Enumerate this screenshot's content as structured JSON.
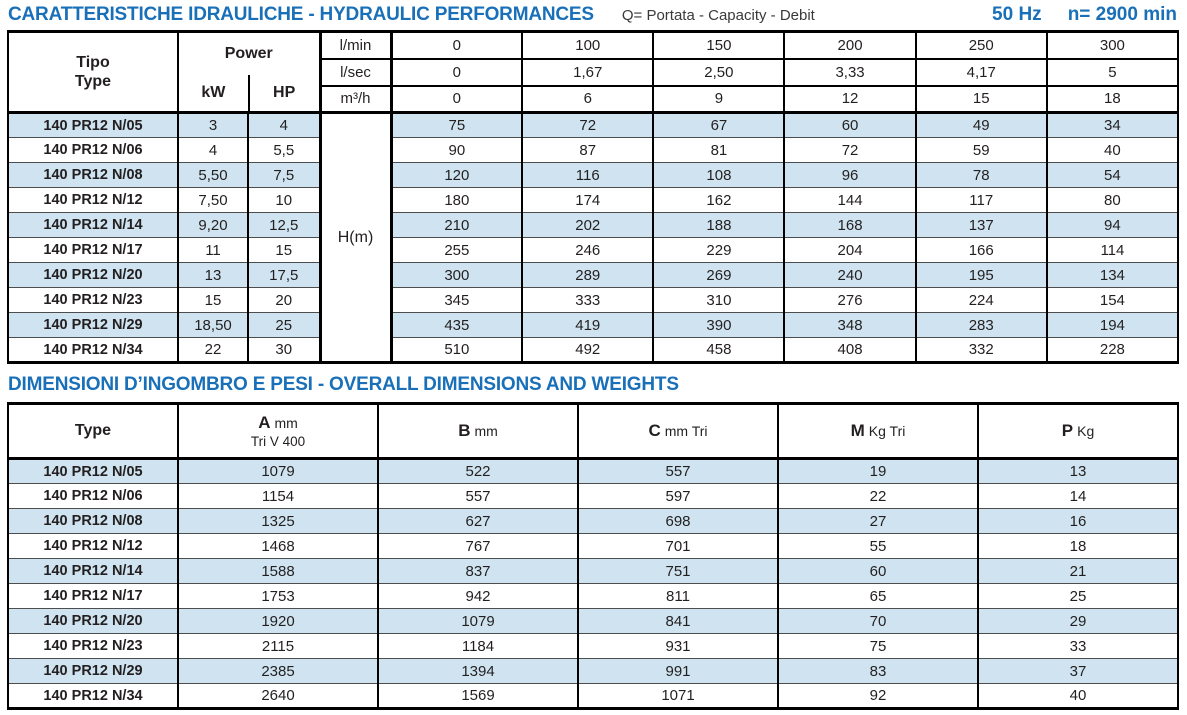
{
  "page": {
    "title1": "CARATTERISTICHE IDRAULICHE - HYDRAULIC PERFORMANCES",
    "subtitle1": "Q= Portata - Capacity - Debit",
    "frequency": "50 Hz",
    "speed": "n= 2900 min",
    "title2": "DIMENSIONI D’INGOMBRO E PESI - OVERALL DIMENSIONS AND WEIGHTS",
    "accent_color": "#1a70b8",
    "stripe_color": "#cfe4f0"
  },
  "hydraulic_table": {
    "type_header_line1": "Tipo",
    "type_header_line2": "Type",
    "power_header": "Power",
    "kw_label": "kW",
    "hp_label": "HP",
    "head_label": "H(m)",
    "flow_rows": [
      {
        "unit": "l/min",
        "values": [
          "0",
          "100",
          "150",
          "200",
          "250",
          "300"
        ]
      },
      {
        "unit": "l/sec",
        "values": [
          "0",
          "1,67",
          "2,50",
          "3,33",
          "4,17",
          "5"
        ]
      },
      {
        "unit": "m³/h",
        "values": [
          "0",
          "6",
          "9",
          "12",
          "15",
          "18"
        ]
      }
    ],
    "rows": [
      {
        "type": "140 PR12 N/05",
        "kw": "3",
        "hp": "4",
        "heads": [
          "75",
          "72",
          "67",
          "60",
          "49",
          "34"
        ]
      },
      {
        "type": "140 PR12 N/06",
        "kw": "4",
        "hp": "5,5",
        "heads": [
          "90",
          "87",
          "81",
          "72",
          "59",
          "40"
        ]
      },
      {
        "type": "140 PR12 N/08",
        "kw": "5,50",
        "hp": "7,5",
        "heads": [
          "120",
          "116",
          "108",
          "96",
          "78",
          "54"
        ]
      },
      {
        "type": "140 PR12 N/12",
        "kw": "7,50",
        "hp": "10",
        "heads": [
          "180",
          "174",
          "162",
          "144",
          "117",
          "80"
        ]
      },
      {
        "type": "140 PR12 N/14",
        "kw": "9,20",
        "hp": "12,5",
        "heads": [
          "210",
          "202",
          "188",
          "168",
          "137",
          "94"
        ]
      },
      {
        "type": "140 PR12 N/17",
        "kw": "11",
        "hp": "15",
        "heads": [
          "255",
          "246",
          "229",
          "204",
          "166",
          "114"
        ]
      },
      {
        "type": "140 PR12 N/20",
        "kw": "13",
        "hp": "17,5",
        "heads": [
          "300",
          "289",
          "269",
          "240",
          "195",
          "134"
        ]
      },
      {
        "type": "140 PR12 N/23",
        "kw": "15",
        "hp": "20",
        "heads": [
          "345",
          "333",
          "310",
          "276",
          "224",
          "154"
        ]
      },
      {
        "type": "140 PR12 N/29",
        "kw": "18,50",
        "hp": "25",
        "heads": [
          "435",
          "419",
          "390",
          "348",
          "283",
          "194"
        ]
      },
      {
        "type": "140 PR12 N/34",
        "kw": "22",
        "hp": "30",
        "heads": [
          "510",
          "492",
          "458",
          "408",
          "332",
          "228"
        ]
      }
    ]
  },
  "dimensions_table": {
    "type_header": "Type",
    "col_headers": [
      {
        "letter": "A",
        "unit": "mm",
        "sub": "Tri V 400"
      },
      {
        "letter": "B",
        "unit": "mm",
        "sub": ""
      },
      {
        "letter": "C",
        "unit": "mm Tri",
        "sub": ""
      },
      {
        "letter": "M",
        "unit": "Kg Tri",
        "sub": ""
      },
      {
        "letter": "P",
        "unit": "Kg",
        "sub": ""
      }
    ],
    "rows": [
      {
        "type": "140 PR12 N/05",
        "values": [
          "1079",
          "522",
          "557",
          "19",
          "13"
        ]
      },
      {
        "type": "140 PR12 N/06",
        "values": [
          "1154",
          "557",
          "597",
          "22",
          "14"
        ]
      },
      {
        "type": "140 PR12 N/08",
        "values": [
          "1325",
          "627",
          "698",
          "27",
          "16"
        ]
      },
      {
        "type": "140 PR12 N/12",
        "values": [
          "1468",
          "767",
          "701",
          "55",
          "18"
        ]
      },
      {
        "type": "140 PR12 N/14",
        "values": [
          "1588",
          "837",
          "751",
          "60",
          "21"
        ]
      },
      {
        "type": "140 PR12 N/17",
        "values": [
          "1753",
          "942",
          "811",
          "65",
          "25"
        ]
      },
      {
        "type": "140 PR12 N/20",
        "values": [
          "1920",
          "1079",
          "841",
          "70",
          "29"
        ]
      },
      {
        "type": "140 PR12 N/23",
        "values": [
          "2115",
          "1184",
          "931",
          "75",
          "33"
        ]
      },
      {
        "type": "140 PR12 N/29",
        "values": [
          "2385",
          "1394",
          "991",
          "83",
          "37"
        ]
      },
      {
        "type": "140 PR12 N/34",
        "values": [
          "2640",
          "1569",
          "1071",
          "92",
          "40"
        ]
      }
    ]
  }
}
